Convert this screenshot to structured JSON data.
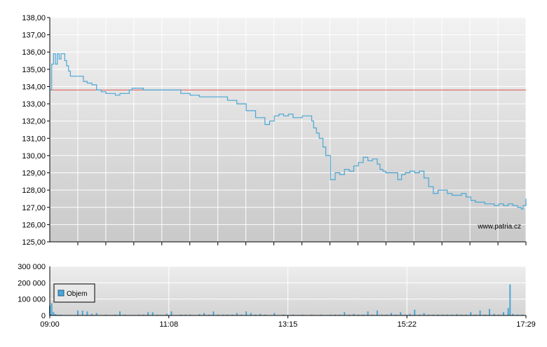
{
  "chart_data": [
    {
      "type": "line",
      "name": "price",
      "ylim": [
        125,
        138
      ],
      "y_ticks": [
        "125,00",
        "126,00",
        "127,00",
        "128,00",
        "129,00",
        "130,00",
        "131,00",
        "132,00",
        "133,00",
        "134,00",
        "135,00",
        "136,00",
        "137,00",
        "138,00"
      ],
      "x_range_minutes": [
        540,
        1049
      ],
      "reference_line": 133.8,
      "grid": true,
      "watermark": "www.patria.cz",
      "series": [
        {
          "x": [
            540,
            542,
            544,
            546,
            548,
            550,
            552,
            554,
            556,
            558,
            560,
            562,
            564,
            566,
            568,
            572,
            576,
            580,
            585,
            590,
            595,
            600,
            605,
            610,
            615,
            620,
            625,
            628,
            631,
            635,
            640,
            645,
            650,
            655,
            660,
            665,
            670,
            675,
            680,
            685,
            690,
            700,
            710,
            720,
            730,
            740,
            750,
            760,
            770,
            775,
            780,
            785,
            790,
            795,
            800,
            805,
            810,
            815,
            820,
            822,
            825,
            828,
            832,
            835,
            840,
            845,
            850,
            855,
            860,
            865,
            870,
            875,
            880,
            885,
            890,
            893,
            896,
            899,
            902,
            905,
            908,
            912,
            916,
            920,
            925,
            930,
            935,
            940,
            945,
            950,
            955,
            960,
            965,
            970,
            975,
            980,
            985,
            990,
            995,
            1000,
            1005,
            1010,
            1015,
            1020,
            1025,
            1030,
            1035,
            1040,
            1044,
            1046,
            1049
          ],
          "values": [
            133.8,
            135.3,
            135.9,
            135.3,
            135.9,
            135.6,
            135.9,
            135.9,
            135.5,
            135.2,
            134.9,
            134.6,
            134.6,
            134.6,
            134.6,
            134.6,
            134.3,
            134.2,
            134.1,
            133.8,
            133.7,
            133.6,
            133.6,
            133.5,
            133.6,
            133.6,
            133.8,
            133.9,
            133.9,
            133.9,
            133.8,
            133.8,
            133.8,
            133.8,
            133.8,
            133.8,
            133.8,
            133.8,
            133.6,
            133.6,
            133.5,
            133.4,
            133.4,
            133.4,
            133.2,
            133.0,
            132.6,
            132.2,
            131.8,
            132.0,
            132.3,
            132.4,
            132.3,
            132.4,
            132.2,
            132.2,
            132.3,
            132.3,
            132.0,
            131.6,
            131.3,
            131.0,
            130.5,
            130.0,
            128.6,
            129.0,
            128.9,
            129.2,
            129.1,
            129.4,
            129.6,
            129.9,
            129.7,
            129.8,
            129.5,
            129.2,
            129.1,
            129.0,
            129.0,
            129.0,
            129.0,
            128.6,
            128.9,
            129.0,
            129.1,
            129.0,
            129.1,
            128.7,
            128.2,
            127.8,
            128.0,
            128.0,
            127.8,
            127.7,
            127.7,
            127.8,
            127.6,
            127.4,
            127.3,
            127.3,
            127.2,
            127.2,
            127.1,
            127.2,
            127.1,
            127.2,
            127.1,
            127.0,
            126.9,
            127.1,
            127.5
          ]
        }
      ]
    },
    {
      "type": "bar",
      "name": "volume",
      "ylim": [
        0,
        300000
      ],
      "y_ticks": [
        "0",
        "100 000",
        "200 000",
        "300 000"
      ],
      "x_ticks": [
        "09:00",
        "11:08",
        "13:15",
        "15:22",
        "17:29"
      ],
      "legend": {
        "label": "Objem",
        "placement": "left"
      },
      "series": [
        {
          "name": "Objem",
          "x": [
            540,
            541,
            542,
            544,
            546,
            548,
            550,
            552,
            556,
            560,
            570,
            575,
            580,
            585,
            590,
            600,
            610,
            615,
            620,
            625,
            635,
            640,
            645,
            650,
            655,
            660,
            665,
            670,
            680,
            685,
            690,
            700,
            705,
            710,
            715,
            720,
            725,
            730,
            735,
            740,
            745,
            750,
            755,
            760,
            765,
            770,
            780,
            790,
            800,
            810,
            820,
            830,
            840,
            845,
            850,
            855,
            860,
            865,
            870,
            875,
            880,
            885,
            890,
            895,
            900,
            905,
            910,
            915,
            920,
            925,
            930,
            935,
            940,
            945,
            950,
            955,
            960,
            965,
            970,
            975,
            980,
            985,
            990,
            995,
            1000,
            1005,
            1010,
            1015,
            1020,
            1025,
            1030,
            1032,
            1035,
            1040,
            1045
          ],
          "values": [
            60000,
            5000,
            75000,
            20000,
            8000,
            5000,
            4000,
            5000,
            3000,
            3000,
            30000,
            30000,
            25000,
            10000,
            15000,
            5000,
            5000,
            25000,
            5000,
            3000,
            5000,
            5000,
            20000,
            20000,
            5000,
            3000,
            10000,
            25000,
            5000,
            5000,
            5000,
            8000,
            15000,
            5000,
            25000,
            5000,
            5000,
            5000,
            5000,
            15000,
            5000,
            25000,
            15000,
            5000,
            10000,
            5000,
            15000,
            5000,
            5000,
            5000,
            5000,
            5000,
            5000,
            5000,
            5000,
            20000,
            5000,
            10000,
            5000,
            5000,
            25000,
            5000,
            30000,
            5000,
            5000,
            15000,
            5000,
            20000,
            5000,
            10000,
            35000,
            5000,
            15000,
            5000,
            5000,
            5000,
            5000,
            5000,
            5000,
            8000,
            5000,
            5000,
            20000,
            5000,
            30000,
            5000,
            40000,
            10000,
            5000,
            20000,
            45000,
            190000,
            10000,
            5000,
            5000
          ]
        }
      ]
    }
  ]
}
